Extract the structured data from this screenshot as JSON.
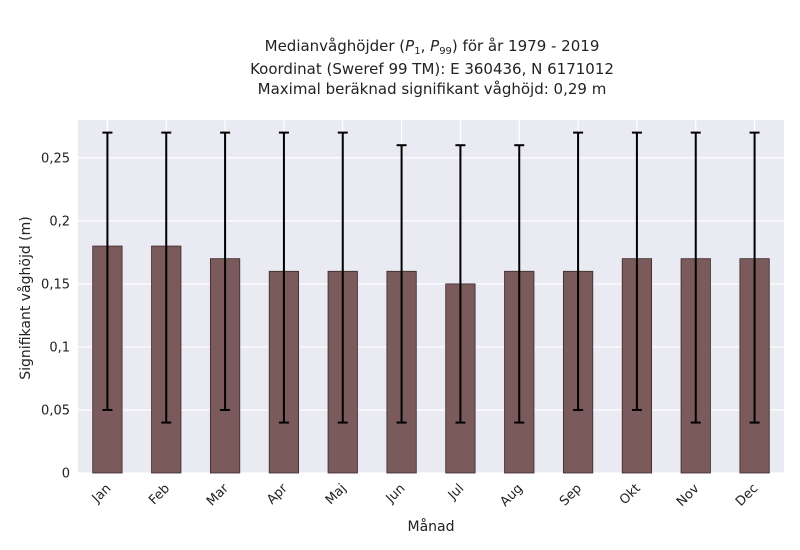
{
  "chart_data": {
    "type": "bar",
    "title_lines": [
      "Medianvåghöjder (P1, P99) för år 1979 - 2019",
      "Koordinat (Sweref 99 TM): E 360436, N 6171012",
      "Maximal beräknad signifikant våghöjd: 0,29 m"
    ],
    "title_math": {
      "prefix": "Medianvåghöjder (",
      "p1_base": "P",
      "p1_sub": "1",
      "sep": ", ",
      "p99_base": "P",
      "p99_sub": "99",
      "suffix": ") för år 1979 - 2019"
    },
    "xlabel": "Månad",
    "ylabel": "Signifikant våghöjd (m)",
    "categories": [
      "Jan",
      "Feb",
      "Mar",
      "Apr",
      "Maj",
      "Jun",
      "Jul",
      "Aug",
      "Sep",
      "Okt",
      "Nov",
      "Dec"
    ],
    "values": [
      0.18,
      0.18,
      0.17,
      0.16,
      0.16,
      0.16,
      0.15,
      0.16,
      0.16,
      0.17,
      0.17,
      0.17
    ],
    "error_low": [
      0.05,
      0.04,
      0.05,
      0.04,
      0.04,
      0.04,
      0.04,
      0.04,
      0.05,
      0.05,
      0.04,
      0.04
    ],
    "error_high": [
      0.27,
      0.27,
      0.27,
      0.27,
      0.27,
      0.26,
      0.26,
      0.26,
      0.27,
      0.27,
      0.27,
      0.27
    ],
    "ylim": [
      0,
      0.28
    ],
    "yticks": [
      0,
      0.05,
      0.1,
      0.15,
      0.2,
      0.25
    ],
    "ytick_labels": [
      "0",
      "0,05",
      "0,1",
      "0,15",
      "0,2",
      "0,25"
    ],
    "grid": true,
    "colors": {
      "bar": "#7a5a5a",
      "bar_edge": "#3a2a2a",
      "error": "#000000",
      "plot_bg": "#eaeaf2",
      "grid": "#ffffff"
    }
  }
}
